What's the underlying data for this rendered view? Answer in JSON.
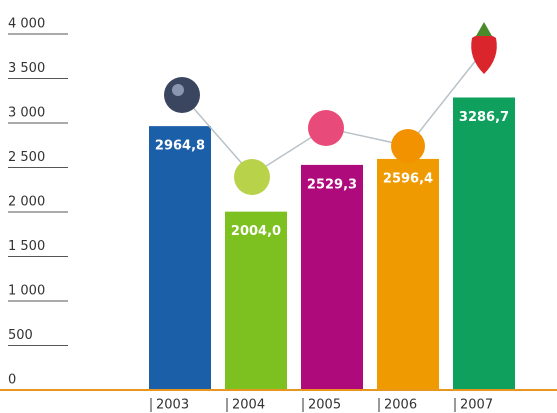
{
  "chart_data": {
    "type": "bar",
    "categories": [
      "2003",
      "2004",
      "2005",
      "2006",
      "2007"
    ],
    "values": [
      2964.8,
      2004.0,
      2529.3,
      2596.4,
      3286.7
    ],
    "value_labels": [
      "2964,8",
      "2004,0",
      "2529,3",
      "2596,4",
      "3286,7"
    ],
    "colors": [
      "#1b5fa9",
      "#7cc11f",
      "#ae0a7c",
      "#ef9a00",
      "#10a05e"
    ],
    "ylim": [
      0,
      4000
    ],
    "yticks": [
      0,
      500,
      {
        "value": 1000,
        "label": "1 000"
      },
      {
        "value": 1500,
        "label": "1 500"
      },
      {
        "value": 2000,
        "label": "2 000"
      },
      {
        "value": 2500,
        "label": "2 500"
      },
      {
        "value": 3000,
        "label": "3 000"
      },
      {
        "value": 3500,
        "label": "3 500"
      },
      {
        "value": 4000,
        "label": "4 000"
      }
    ]
  }
}
